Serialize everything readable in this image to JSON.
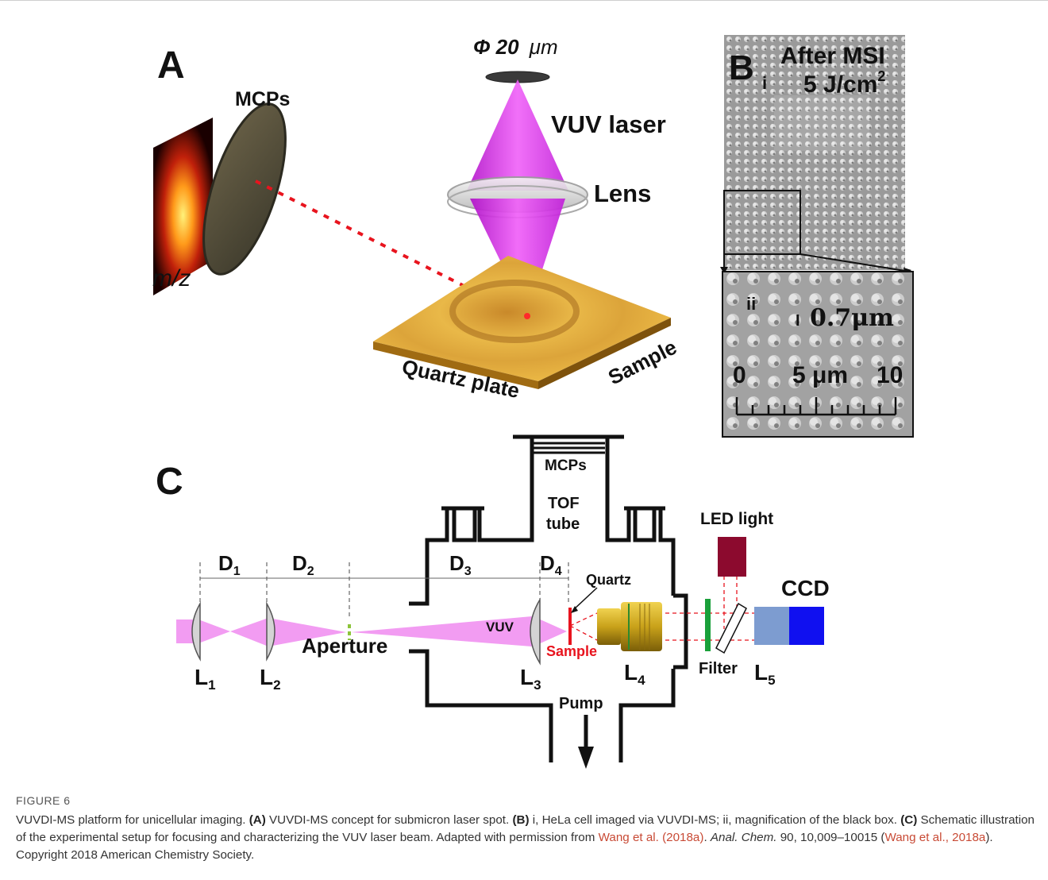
{
  "panel_a": {
    "label": "A",
    "phi_prefix": "Φ 20",
    "phi_unit": "μm",
    "mcps": "MCPs",
    "vuv_laser": "VUV laser",
    "lens": "Lens",
    "mz": "m/z",
    "quartz_plate": "Quartz plate",
    "sample": "Sample"
  },
  "panel_b": {
    "label": "B",
    "sub_i": "i",
    "after_msi": "After MSI",
    "fluence": "5 J/cm",
    "fluence_sup": "2",
    "sub_ii": "ii",
    "spot_size": "0.7μm",
    "scale_left": "0",
    "scale_mid": "5 μm",
    "scale_right": "10"
  },
  "panel_c": {
    "label": "C",
    "mcps": "MCPs",
    "tof": "TOF",
    "tube": "tube",
    "led_light": "LED light",
    "ccd": "CCD",
    "d1": "D",
    "d1_sub": "1",
    "d2": "D",
    "d2_sub": "2",
    "d3": "D",
    "d3_sub": "3",
    "d4": "D",
    "d4_sub": "4",
    "quartz": "Quartz",
    "vuv": "VUV",
    "aperture": "Aperture",
    "sample": "Sample",
    "l1": "L",
    "l1_sub": "1",
    "l2": "L",
    "l2_sub": "2",
    "l3": "L",
    "l3_sub": "3",
    "l4": "L",
    "l4_sub": "4",
    "l5": "L",
    "l5_sub": "5",
    "filter": "Filter",
    "pump": "Pump"
  },
  "colors": {
    "laser_magenta": "#e040e8",
    "beam_pink": "#f29cf2",
    "sample_red": "#e8141e",
    "led_maroon": "#8c0a2e",
    "ccd_blue": "#1010f0",
    "ccd_light": "#7d9cd0",
    "objective_gold": "#c9a21a",
    "filter_green": "#1aa03a",
    "link_red": "#c84a35"
  },
  "caption": {
    "figure_label": "FIGURE 6",
    "line1": "VUVDI-MS platform for unicellular imaging. ",
    "a_tag": "(A)",
    "a_text": " VUVDI-MS concept for submicron laser spot. ",
    "b_tag": "(B)",
    "b_text": " i, HeLa cell imaged via VUVDI-MS; ii, magnification of the black box. ",
    "c_tag": "(C)",
    "c_text": " Schematic illustration of the experimental setup for focusing and characterizing the VUV laser beam. Adapted with permission from ",
    "ref1": "Wang et al. (2018a)",
    "dot": ". ",
    "journal": "Anal. Chem.",
    "cite_text": " 90, 10,009–10015 (",
    "ref2": "Wang et al., 2018a",
    "tail": "). Copyright 2018 American Chemistry Society."
  }
}
